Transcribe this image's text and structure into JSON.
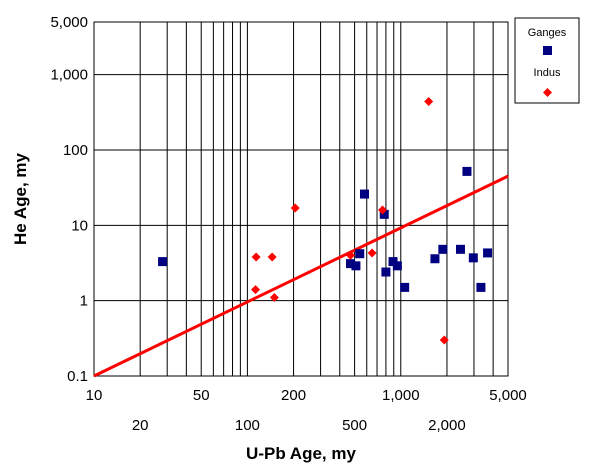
{
  "chart_data": {
    "type": "scatter",
    "xlabel": "U-Pb Age, my",
    "ylabel": "He Age, my",
    "x_scale": "log",
    "y_scale": "log",
    "xlim": [
      10,
      5000
    ],
    "ylim": [
      0.1,
      5000
    ],
    "grid": true,
    "legend_position": "top-right",
    "x_ticks_row1": [
      {
        "value": 10,
        "label": "10"
      },
      {
        "value": 50,
        "label": "50"
      },
      {
        "value": 200,
        "label": "200"
      },
      {
        "value": 1000,
        "label": "1,000"
      },
      {
        "value": 5000,
        "label": "5,000"
      }
    ],
    "x_ticks_row2": [
      {
        "value": 20,
        "label": "20"
      },
      {
        "value": 100,
        "label": "100"
      },
      {
        "value": 500,
        "label": "500"
      },
      {
        "value": 2000,
        "label": "2,000"
      }
    ],
    "y_ticks": [
      {
        "value": 0.1,
        "label": "0.1"
      },
      {
        "value": 1,
        "label": "1"
      },
      {
        "value": 10,
        "label": "10"
      },
      {
        "value": 100,
        "label": "100"
      },
      {
        "value": 1000,
        "label": "1,000"
      },
      {
        "value": 5000,
        "label": "5,000"
      }
    ],
    "series": [
      {
        "name": "Ganges",
        "marker": "square",
        "color": "#000080",
        "points": [
          {
            "x": 28,
            "y": 3.3
          },
          {
            "x": 470,
            "y": 3.1
          },
          {
            "x": 510,
            "y": 2.9
          },
          {
            "x": 540,
            "y": 4.2
          },
          {
            "x": 580,
            "y": 26
          },
          {
            "x": 780,
            "y": 14
          },
          {
            "x": 800,
            "y": 2.4
          },
          {
            "x": 890,
            "y": 3.3
          },
          {
            "x": 950,
            "y": 2.9
          },
          {
            "x": 1060,
            "y": 1.5
          },
          {
            "x": 1670,
            "y": 3.6
          },
          {
            "x": 1880,
            "y": 4.8
          },
          {
            "x": 2450,
            "y": 4.8
          },
          {
            "x": 2700,
            "y": 52
          },
          {
            "x": 2970,
            "y": 3.7
          },
          {
            "x": 3330,
            "y": 1.5
          },
          {
            "x": 3680,
            "y": 4.3
          }
        ]
      },
      {
        "name": "Indus",
        "marker": "diamond",
        "color": "#ff0000",
        "points": [
          {
            "x": 113,
            "y": 1.4
          },
          {
            "x": 114,
            "y": 3.8
          },
          {
            "x": 145,
            "y": 3.8
          },
          {
            "x": 150,
            "y": 1.1
          },
          {
            "x": 205,
            "y": 17
          },
          {
            "x": 470,
            "y": 4.0
          },
          {
            "x": 650,
            "y": 4.3
          },
          {
            "x": 760,
            "y": 16
          },
          {
            "x": 1520,
            "y": 440
          },
          {
            "x": 1920,
            "y": 0.3
          }
        ]
      }
    ],
    "reference_line": {
      "color": "#ff0000",
      "x": [
        10,
        5000
      ],
      "y": [
        0.1,
        45
      ]
    }
  }
}
